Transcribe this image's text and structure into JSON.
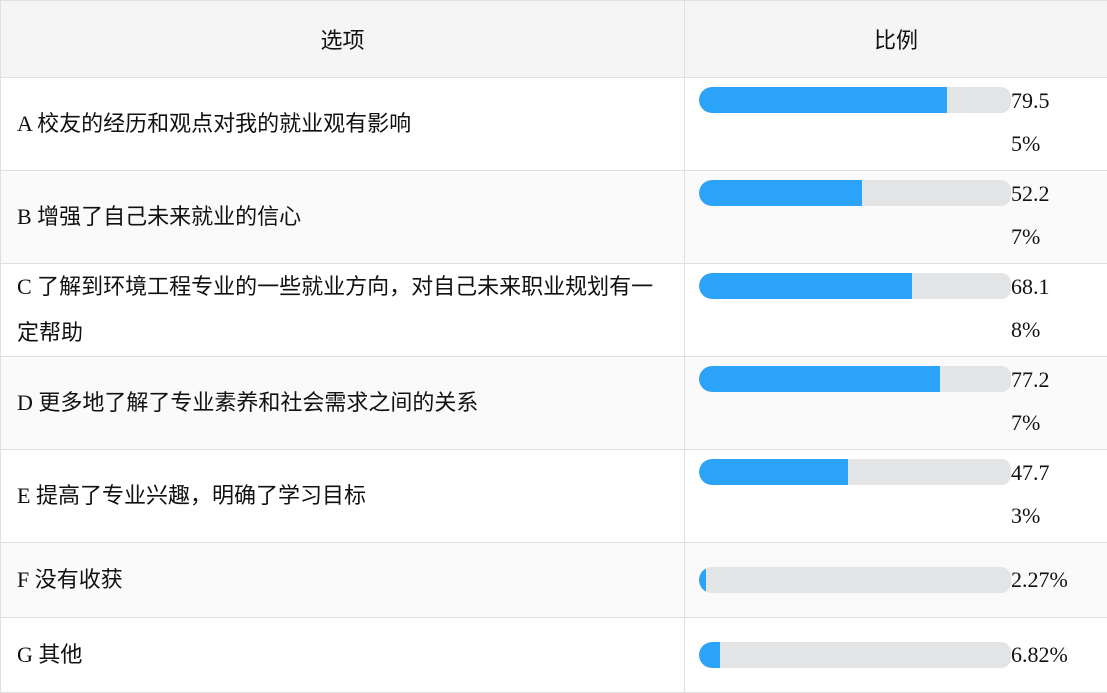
{
  "header": {
    "option": "选项",
    "ratio": "比例"
  },
  "colors": {
    "fill": "#2ba3f8",
    "track": "#e3e4e6"
  },
  "rows": [
    {
      "label": "A  校友的经历和观点对我的就业观有影响",
      "value": "79.55%",
      "percent": 79.55
    },
    {
      "label": "B  增强了自己未来就业的信心",
      "value": "52.27%",
      "percent": 52.27
    },
    {
      "label": "C  了解到环境工程专业的一些就业方向，对自己未来职业规划有一定帮助",
      "value": "68.18%",
      "percent": 68.18
    },
    {
      "label": "D  更多地了解了专业素养和社会需求之间的关系",
      "value": "77.27%",
      "percent": 77.27
    },
    {
      "label": "E  提高了专业兴趣，明确了学习目标",
      "value": "47.73%",
      "percent": 47.73
    },
    {
      "label": "F  没有收获",
      "value": "2.27%",
      "percent": 2.27
    },
    {
      "label": "G  其他",
      "value": "6.82%",
      "percent": 6.82
    }
  ]
}
